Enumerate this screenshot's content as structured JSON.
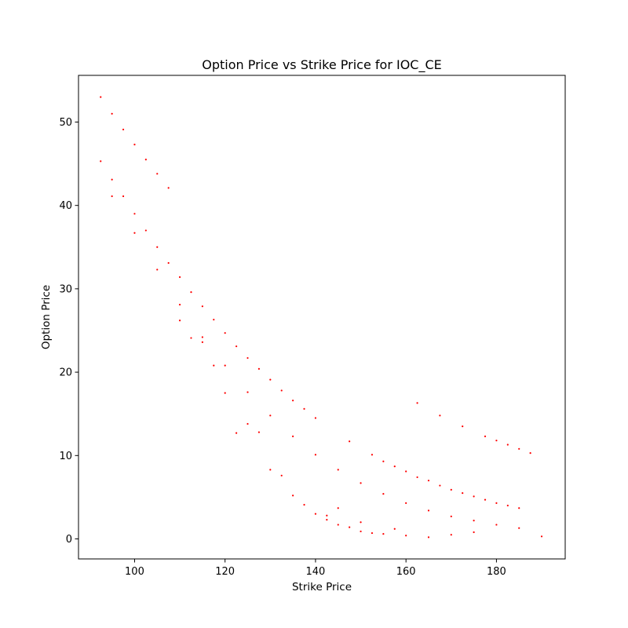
{
  "chart_data": {
    "type": "scatter",
    "title": "Option Price vs Strike Price for IOC_CE",
    "xlabel": "Strike Price",
    "ylabel": "Option Price",
    "xlim": [
      87.6,
      195.2
    ],
    "ylim": [
      -2.4,
      55.6
    ],
    "xticks": [
      100,
      120,
      140,
      160,
      180
    ],
    "yticks": [
      0,
      10,
      20,
      30,
      40,
      50
    ],
    "grid": false,
    "marker_color": "#ff0000",
    "series": [
      {
        "points": [
          [
            92.5,
            53.0
          ],
          [
            95,
            51.0
          ],
          [
            97.5,
            49.1
          ],
          [
            100,
            47.3
          ],
          [
            102.5,
            45.5
          ],
          [
            105,
            43.8
          ],
          [
            107.5,
            42.1
          ],
          [
            92.5,
            45.3
          ],
          [
            95,
            43.1
          ],
          [
            95,
            41.1
          ],
          [
            97.5,
            41.1
          ],
          [
            100,
            39.0
          ],
          [
            100,
            36.7
          ],
          [
            102.5,
            37.0
          ],
          [
            105,
            35.0
          ],
          [
            105,
            32.3
          ],
          [
            107.5,
            33.1
          ],
          [
            110,
            31.4
          ],
          [
            110,
            28.1
          ],
          [
            110,
            26.2
          ],
          [
            112.5,
            29.6
          ],
          [
            112.5,
            24.1
          ],
          [
            115,
            27.9
          ],
          [
            115,
            24.2
          ],
          [
            115,
            23.6
          ],
          [
            117.5,
            26.3
          ],
          [
            117.5,
            20.8
          ],
          [
            120,
            24.7
          ],
          [
            120,
            20.8
          ],
          [
            120,
            17.5
          ],
          [
            122.5,
            23.1
          ],
          [
            122.5,
            12.7
          ],
          [
            125,
            21.7
          ],
          [
            125,
            17.6
          ],
          [
            125,
            13.8
          ],
          [
            127.5,
            20.4
          ],
          [
            127.5,
            12.8
          ],
          [
            130,
            19.1
          ],
          [
            130,
            14.8
          ],
          [
            130,
            8.3
          ],
          [
            132.5,
            17.8
          ],
          [
            132.5,
            7.6
          ],
          [
            135,
            16.6
          ],
          [
            135,
            12.3
          ],
          [
            135,
            5.2
          ],
          [
            137.5,
            15.6
          ],
          [
            137.5,
            4.1
          ],
          [
            140,
            14.5
          ],
          [
            140,
            10.1
          ],
          [
            140,
            3.0
          ],
          [
            142.5,
            2.8
          ],
          [
            142.5,
            2.3
          ],
          [
            145,
            8.3
          ],
          [
            145,
            3.7
          ],
          [
            145,
            1.7
          ],
          [
            147.5,
            11.7
          ],
          [
            147.5,
            1.4
          ],
          [
            150,
            6.7
          ],
          [
            150,
            2.0
          ],
          [
            150,
            0.9
          ],
          [
            152.5,
            10.1
          ],
          [
            152.5,
            0.7
          ],
          [
            155,
            9.3
          ],
          [
            155,
            5.4
          ],
          [
            155,
            0.6
          ],
          [
            157.5,
            8.7
          ],
          [
            157.5,
            1.2
          ],
          [
            160,
            8.1
          ],
          [
            160,
            4.3
          ],
          [
            160,
            0.4
          ],
          [
            162.5,
            16.3
          ],
          [
            162.5,
            7.4
          ],
          [
            165,
            7.0
          ],
          [
            165,
            3.4
          ],
          [
            165,
            0.2
          ],
          [
            167.5,
            14.8
          ],
          [
            167.5,
            6.4
          ],
          [
            170,
            5.9
          ],
          [
            170,
            2.7
          ],
          [
            170,
            0.5
          ],
          [
            172.5,
            13.5
          ],
          [
            172.5,
            5.5
          ],
          [
            175,
            5.1
          ],
          [
            175,
            2.2
          ],
          [
            175,
            0.8
          ],
          [
            177.5,
            12.3
          ],
          [
            177.5,
            4.7
          ],
          [
            180,
            11.8
          ],
          [
            180,
            4.3
          ],
          [
            180,
            1.7
          ],
          [
            182.5,
            11.3
          ],
          [
            182.5,
            4.0
          ],
          [
            185,
            10.8
          ],
          [
            185,
            3.7
          ],
          [
            185,
            1.3
          ],
          [
            187.5,
            10.3
          ],
          [
            190,
            0.3
          ]
        ]
      }
    ]
  }
}
